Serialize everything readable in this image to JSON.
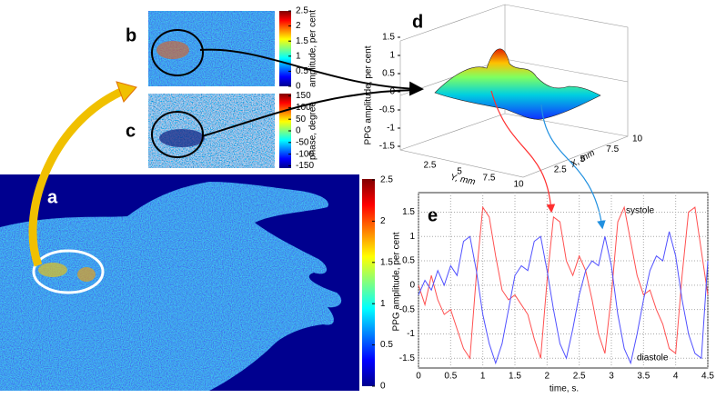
{
  "panels": {
    "a": {
      "label": "a",
      "colorbar": {
        "lim": [
          0,
          2.5
        ],
        "ticks": [
          0,
          0.5,
          1,
          1.5,
          2,
          2.5
        ]
      }
    },
    "b": {
      "label": "b",
      "colorbar": {
        "lim": [
          0,
          2.5
        ],
        "ticks": [
          0,
          0.5,
          1,
          1.5,
          2,
          2.5
        ],
        "title": "amplitude, per cent"
      }
    },
    "c": {
      "label": "c",
      "colorbar": {
        "lim": [
          -160,
          160
        ],
        "ticks": [
          -150,
          -100,
          -50,
          0,
          50,
          100,
          150
        ],
        "title": "phase, degree"
      }
    },
    "d": {
      "label": "d",
      "zlabel": "PPG amplitude, per cent",
      "zlim": [
        -1.5,
        1.5
      ],
      "zticks": [
        -1.5,
        -1,
        -0.5,
        0,
        0.5,
        1,
        1.5
      ],
      "ylabel": "Y, mm",
      "yticks": [
        2.5,
        5,
        7.5,
        10
      ],
      "xlabel": "X, mm",
      "xticks": [
        2.5,
        5,
        7.5,
        10
      ]
    }
  },
  "chart_data": {
    "type": "line",
    "label": "e",
    "xlabel": "time, s.",
    "ylabel": "PPG amplitude, per cent",
    "xlim": [
      0,
      4.5
    ],
    "ylim": [
      -1.7,
      1.9
    ],
    "xticks": [
      0,
      0.5,
      1,
      1.5,
      2,
      2.5,
      3,
      3.5,
      4,
      4.5
    ],
    "yticks": [
      -1.5,
      -1,
      -0.5,
      0,
      0.5,
      1,
      1.5
    ],
    "grid": true,
    "annotations": [
      "systole",
      "diastole"
    ],
    "x": [
      0,
      0.1,
      0.2,
      0.3,
      0.4,
      0.5,
      0.6,
      0.7,
      0.8,
      0.9,
      1,
      1.1,
      1.2,
      1.3,
      1.4,
      1.5,
      1.6,
      1.7,
      1.8,
      1.9,
      2,
      2.1,
      2.2,
      2.3,
      2.4,
      2.5,
      2.6,
      2.7,
      2.8,
      2.9,
      3,
      3.1,
      3.2,
      3.3,
      3.4,
      3.5,
      3.6,
      3.7,
      3.8,
      3.9,
      4,
      4.1,
      4.2,
      4.3,
      4.4,
      4.5
    ],
    "series": [
      {
        "color": "#ff5050",
        "values": [
          0,
          -0.4,
          0.2,
          -0.3,
          -0.6,
          -0.5,
          -0.9,
          -1.3,
          -1.5,
          0.2,
          1.6,
          1.4,
          0.6,
          -0.1,
          -0.3,
          -0.2,
          -0.4,
          -0.6,
          -1.1,
          -1.5,
          0.1,
          1.4,
          1.3,
          0.5,
          0.2,
          0.6,
          0.3,
          -0.3,
          -1,
          -1.4,
          -0.2,
          1.3,
          1.6,
          0.9,
          0.2,
          -0.2,
          -0.1,
          -0.5,
          -0.8,
          -1.3,
          -1.4,
          0.2,
          1.5,
          1.6,
          0.7,
          -0.2
        ]
      },
      {
        "color": "#5050ff",
        "values": [
          -0.2,
          0.1,
          -0.1,
          0.3,
          0,
          0.4,
          0.2,
          0.9,
          1,
          0.3,
          -0.6,
          -1.2,
          -1.6,
          -1.2,
          -0.5,
          0.2,
          0.4,
          0.3,
          0.9,
          1,
          0.3,
          -0.5,
          -1.2,
          -1.5,
          -0.9,
          -0.2,
          0.3,
          0.5,
          0.4,
          1,
          0.4,
          -0.6,
          -1.3,
          -1.6,
          -1,
          -0.3,
          0.3,
          0.6,
          0.5,
          1.1,
          0.6,
          -0.3,
          -1,
          -1.4,
          -1.5,
          0.5
        ]
      }
    ]
  }
}
